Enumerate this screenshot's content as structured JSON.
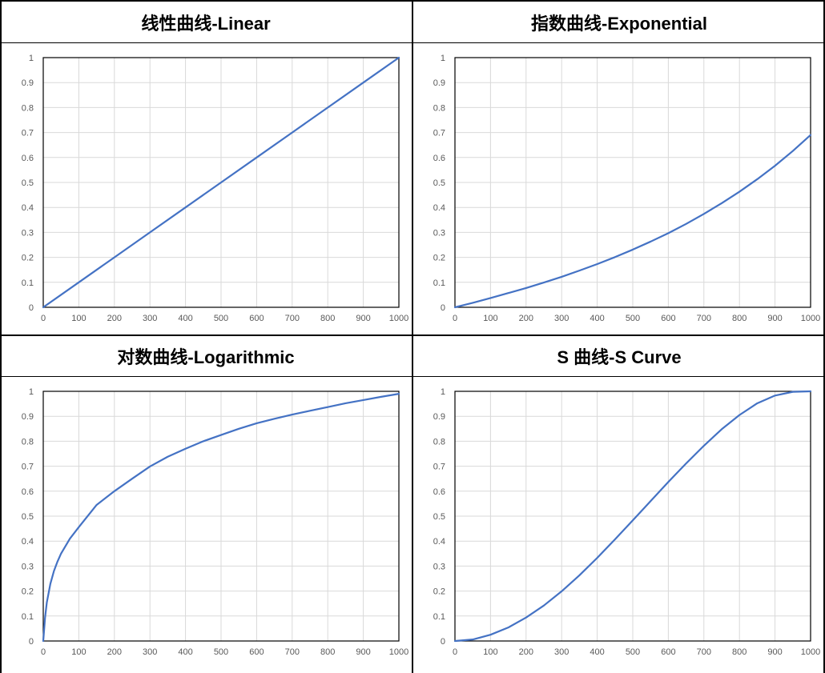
{
  "colors": {
    "line": "#4472C4",
    "grid": "#d9d9d9",
    "frame": "#000000",
    "tick_text": "#595959"
  },
  "chart_data": [
    {
      "type": "line",
      "title": "线性曲线-Linear",
      "xlim": [
        0,
        1000
      ],
      "ylim": [
        0,
        1
      ],
      "xticks": [
        "0",
        "100",
        "200",
        "300",
        "400",
        "500",
        "600",
        "700",
        "800",
        "900",
        "1000"
      ],
      "yticks": [
        "0",
        "0.1",
        "0.2",
        "0.3",
        "0.4",
        "0.5",
        "0.6",
        "0.7",
        "0.8",
        "0.9",
        "1"
      ],
      "grid": true,
      "series": [
        {
          "x": [
            0,
            100,
            200,
            300,
            400,
            500,
            600,
            700,
            800,
            900,
            1000
          ],
          "y": [
            0,
            0.1,
            0.2,
            0.3,
            0.4,
            0.5,
            0.6,
            0.7,
            0.8,
            0.9,
            1
          ]
        }
      ]
    },
    {
      "type": "line",
      "title": "指数曲线-Exponential",
      "xlim": [
        0,
        1000
      ],
      "ylim": [
        0,
        1
      ],
      "xticks": [
        "0",
        "100",
        "200",
        "300",
        "400",
        "500",
        "600",
        "700",
        "800",
        "900",
        "1000"
      ],
      "yticks": [
        "0",
        "0.1",
        "0.2",
        "0.3",
        "0.4",
        "0.5",
        "0.6",
        "0.7",
        "0.8",
        "0.9",
        "1"
      ],
      "grid": true,
      "series": [
        {
          "x": [
            0,
            50,
            100,
            150,
            200,
            250,
            300,
            350,
            400,
            450,
            500,
            550,
            600,
            650,
            700,
            750,
            800,
            850,
            900,
            950,
            1000
          ],
          "y": [
            0,
            0.018,
            0.037,
            0.057,
            0.077,
            0.099,
            0.122,
            0.147,
            0.173,
            0.201,
            0.231,
            0.263,
            0.297,
            0.334,
            0.374,
            0.417,
            0.463,
            0.513,
            0.567,
            0.626,
            0.69
          ]
        }
      ]
    },
    {
      "type": "line",
      "title": "对数曲线-Logarithmic",
      "xlim": [
        0,
        1000
      ],
      "ylim": [
        0,
        1
      ],
      "xticks": [
        "0",
        "100",
        "200",
        "300",
        "400",
        "500",
        "600",
        "700",
        "800",
        "900",
        "1000"
      ],
      "yticks": [
        "0",
        "0.1",
        "0.2",
        "0.3",
        "0.4",
        "0.5",
        "0.6",
        "0.7",
        "0.8",
        "0.9",
        "1"
      ],
      "grid": true,
      "series": [
        {
          "x": [
            0,
            5,
            10,
            20,
            30,
            40,
            50,
            75,
            100,
            150,
            200,
            250,
            300,
            350,
            400,
            450,
            500,
            550,
            600,
            650,
            700,
            750,
            800,
            850,
            900,
            950,
            1000
          ],
          "y": [
            0,
            0.093,
            0.154,
            0.229,
            0.28,
            0.318,
            0.35,
            0.41,
            0.456,
            0.545,
            0.6,
            0.65,
            0.699,
            0.738,
            0.77,
            0.8,
            0.825,
            0.85,
            0.872,
            0.89,
            0.907,
            0.922,
            0.937,
            0.952,
            0.965,
            0.978,
            0.99
          ]
        }
      ]
    },
    {
      "type": "line",
      "title": "S 曲线-S Curve",
      "xlim": [
        0,
        1000
      ],
      "ylim": [
        0,
        1
      ],
      "xticks": [
        "0",
        "100",
        "200",
        "300",
        "400",
        "500",
        "600",
        "700",
        "800",
        "900",
        "1000"
      ],
      "yticks": [
        "0",
        "0.1",
        "0.2",
        "0.3",
        "0.4",
        "0.5",
        "0.6",
        "0.7",
        "0.8",
        "0.9",
        "1"
      ],
      "grid": true,
      "series": [
        {
          "x": [
            0,
            50,
            100,
            150,
            200,
            250,
            300,
            350,
            400,
            450,
            500,
            550,
            600,
            650,
            700,
            750,
            800,
            850,
            900,
            950,
            1000
          ],
          "y": [
            0,
            0.006,
            0.025,
            0.054,
            0.094,
            0.142,
            0.199,
            0.263,
            0.333,
            0.407,
            0.483,
            0.56,
            0.637,
            0.711,
            0.782,
            0.848,
            0.905,
            0.952,
            0.983,
            0.998,
            1.0
          ]
        }
      ]
    }
  ]
}
